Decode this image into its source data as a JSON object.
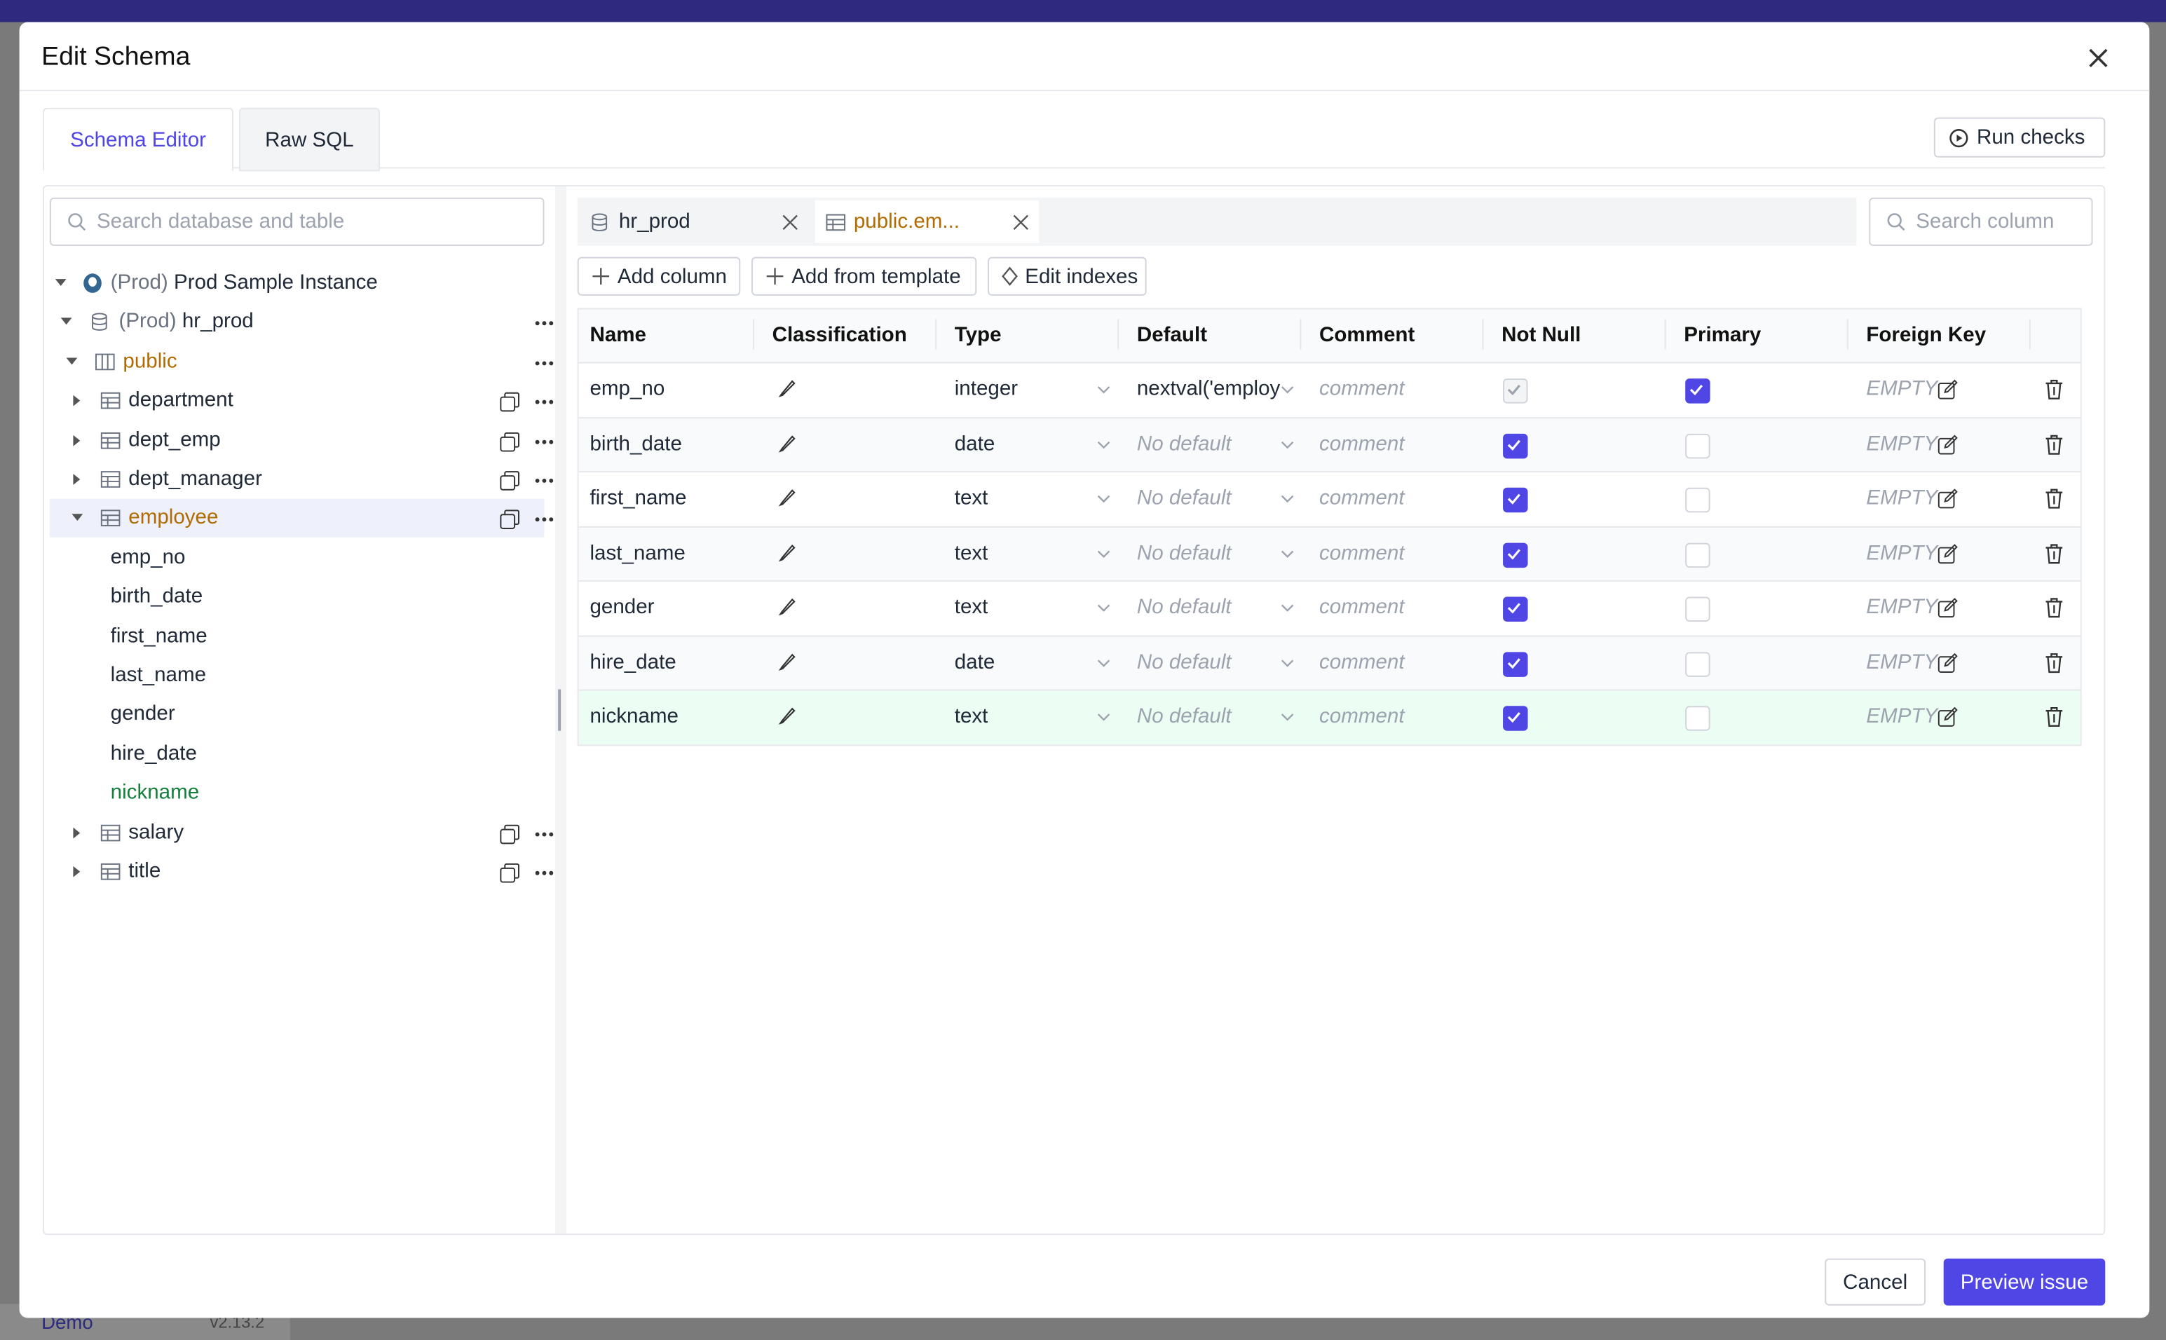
{
  "background": {
    "brand": "Demo",
    "version": "v2.13.2"
  },
  "dialog": {
    "title": "Edit Schema",
    "tabs": [
      {
        "label": "Schema Editor",
        "active": true
      },
      {
        "label": "Raw SQL",
        "active": false
      }
    ],
    "run_checks": "Run checks",
    "sidebar": {
      "search_placeholder": "Search database and table",
      "tree": [
        {
          "prefix": "(Prod)",
          "label": "Prod Sample Instance",
          "level": 0,
          "expanded": true,
          "icon": "instance",
          "actions": false,
          "copy": false
        },
        {
          "prefix": "(Prod)",
          "label": "hr_prod",
          "level": 1,
          "expanded": true,
          "icon": "database",
          "actions": true,
          "copy": false
        },
        {
          "label": "public",
          "level": 2,
          "expanded": true,
          "icon": "schema",
          "actions": true,
          "copy": false,
          "color": "#b26b00"
        },
        {
          "label": "department",
          "level": 3,
          "expanded": false,
          "icon": "table",
          "actions": true,
          "copy": true
        },
        {
          "label": "dept_emp",
          "level": 3,
          "expanded": false,
          "icon": "table",
          "actions": true,
          "copy": true
        },
        {
          "label": "dept_manager",
          "level": 3,
          "expanded": false,
          "icon": "table",
          "actions": true,
          "copy": true
        },
        {
          "label": "employee",
          "level": 3,
          "expanded": true,
          "icon": "table",
          "actions": true,
          "copy": true,
          "color": "#b26b00",
          "selected": true
        },
        {
          "label": "emp_no",
          "level": 4
        },
        {
          "label": "birth_date",
          "level": 4
        },
        {
          "label": "first_name",
          "level": 4
        },
        {
          "label": "last_name",
          "level": 4
        },
        {
          "label": "gender",
          "level": 4
        },
        {
          "label": "hire_date",
          "level": 4
        },
        {
          "label": "nickname",
          "level": 4,
          "color": "#15803d"
        },
        {
          "label": "salary",
          "level": 3,
          "expanded": false,
          "icon": "table",
          "actions": true,
          "copy": true
        },
        {
          "label": "title",
          "level": 3,
          "expanded": false,
          "icon": "table",
          "actions": true,
          "copy": true
        }
      ]
    },
    "editor_tabs": [
      {
        "label": "hr_prod",
        "icon": "database"
      },
      {
        "label": "public.em...",
        "icon": "table",
        "color": "#b26b00",
        "active": true
      }
    ],
    "search_column_placeholder": "Search column",
    "toolbar": [
      "Add column",
      "Add from template",
      "Edit indexes"
    ],
    "table": {
      "columns": [
        "Name",
        "Classification",
        "Type",
        "Default",
        "Comment",
        "Not Null",
        "Primary",
        "Foreign Key"
      ],
      "rows": [
        {
          "name": "emp_no",
          "type": "integer",
          "default": "nextval('employ",
          "default_set": true,
          "comment": "comment",
          "not_null": true,
          "primary": true,
          "foreign_key": "EMPTY"
        },
        {
          "name": "birth_date",
          "type": "date",
          "default": "No default",
          "default_set": false,
          "comment": "comment",
          "not_null": true,
          "primary": false,
          "foreign_key": "EMPTY"
        },
        {
          "name": "first_name",
          "type": "text",
          "default": "No default",
          "default_set": false,
          "comment": "comment",
          "not_null": true,
          "primary": false,
          "foreign_key": "EMPTY"
        },
        {
          "name": "last_name",
          "type": "text",
          "default": "No default",
          "default_set": false,
          "comment": "comment",
          "not_null": true,
          "primary": false,
          "foreign_key": "EMPTY"
        },
        {
          "name": "gender",
          "type": "text",
          "default": "No default",
          "default_set": false,
          "comment": "comment",
          "not_null": true,
          "primary": false,
          "foreign_key": "EMPTY"
        },
        {
          "name": "hire_date",
          "type": "date",
          "default": "No default",
          "default_set": false,
          "comment": "comment",
          "not_null": true,
          "primary": false,
          "foreign_key": "EMPTY"
        },
        {
          "name": "nickname",
          "type": "text",
          "default": "No default",
          "default_set": false,
          "comment": "comment",
          "not_null": true,
          "primary": false,
          "foreign_key": "EMPTY",
          "added": true
        }
      ]
    },
    "footer": {
      "cancel": "Cancel",
      "preview": "Preview issue"
    }
  }
}
